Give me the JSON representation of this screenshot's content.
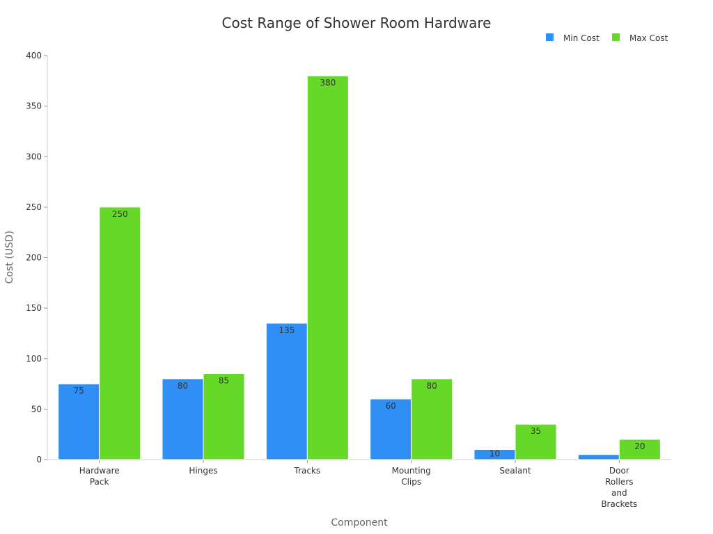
{
  "colors": {
    "min_cost": "#2f8ff5",
    "max_cost": "#66d928",
    "axis": "#cccccc",
    "text": "#333333"
  },
  "chart_data": {
    "type": "bar",
    "title": "Cost Range of Shower Room Hardware",
    "xlabel": "Component",
    "ylabel": "Cost (USD)",
    "categories": [
      [
        "Hardware",
        "Pack"
      ],
      [
        "Hinges"
      ],
      [
        "Tracks"
      ],
      [
        "Mounting",
        "Clips"
      ],
      [
        "Sealant"
      ],
      [
        "Door",
        "Rollers",
        "and",
        "Brackets"
      ]
    ],
    "series": [
      {
        "name": "Min Cost",
        "values": [
          75,
          80,
          135,
          60,
          10,
          5
        ]
      },
      {
        "name": "Max Cost",
        "values": [
          250,
          85,
          380,
          80,
          35,
          20
        ]
      }
    ],
    "data_labels": [
      [
        "75",
        "80",
        "135",
        "60",
        "10",
        ""
      ],
      [
        "250",
        "85",
        "380",
        "80",
        "35",
        "20"
      ]
    ],
    "ylim": [
      0,
      400
    ],
    "yticks": [
      0,
      50,
      100,
      150,
      200,
      250,
      300,
      350,
      400
    ],
    "grid": false,
    "legend_position": "top-right"
  }
}
